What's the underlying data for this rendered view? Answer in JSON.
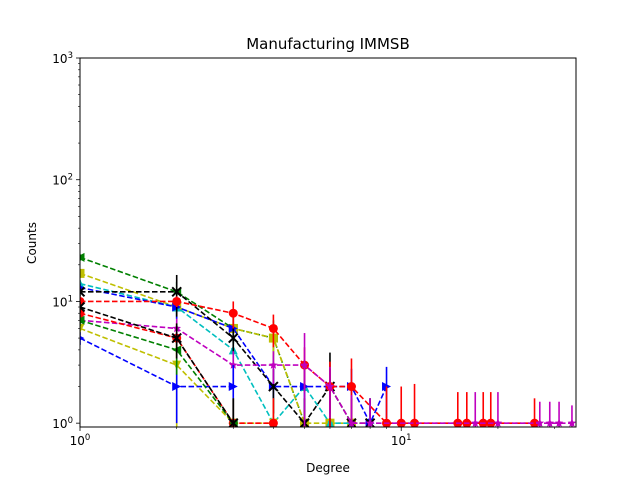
{
  "chart_data": {
    "type": "line",
    "title": "Manufacturing IMMSB",
    "xlabel": "Degree",
    "ylabel": "Counts",
    "xscale": "log",
    "yscale": "log",
    "xlim": [
      1,
      35
    ],
    "ylim": [
      0.93,
      1000
    ],
    "xticks": [
      {
        "value": 1,
        "base": "10",
        "exp": "0"
      },
      {
        "value": 10,
        "base": "10",
        "exp": "1"
      }
    ],
    "yticks": [
      {
        "value": 1,
        "base": "10",
        "exp": "0"
      },
      {
        "value": 10,
        "base": "10",
        "exp": "1"
      },
      {
        "value": 100,
        "base": "10",
        "exp": "2"
      },
      {
        "value": 1000,
        "base": "10",
        "exp": "3"
      }
    ],
    "grid": false,
    "legend": "none",
    "series": [
      {
        "color": "#008000",
        "marker": "triangle-left",
        "x": [
          1,
          2,
          3,
          4,
          5
        ],
        "y": [
          23,
          12,
          6,
          5,
          1
        ],
        "err": [
          1.4,
          2.5,
          1.5,
          2.0,
          0.6
        ]
      },
      {
        "color": "#bfbf00",
        "marker": "square",
        "x": [
          1,
          2,
          3,
          4,
          5,
          6,
          7
        ],
        "y": [
          17,
          9,
          6,
          5,
          1,
          1,
          1
        ],
        "err": [
          1.2,
          1.8,
          1.5,
          1.4,
          0.6,
          0.6,
          0.6
        ]
      },
      {
        "color": "#00bfbf",
        "marker": "triangle-up",
        "x": [
          1,
          2,
          3,
          4,
          5,
          6,
          7
        ],
        "y": [
          14,
          9,
          4,
          1,
          2,
          1,
          1
        ],
        "err": [
          1.0,
          1.8,
          1.2,
          0.6,
          0.8,
          0.6,
          0.6
        ]
      },
      {
        "color": "#0000ff",
        "marker": "triangle-right",
        "x": [
          1,
          2,
          3,
          4,
          5,
          6,
          7,
          8,
          9
        ],
        "y": [
          13,
          9,
          6,
          2,
          2,
          2,
          2,
          1,
          2
        ],
        "err": [
          1.0,
          1.8,
          1.4,
          0.8,
          0.8,
          0.8,
          0.8,
          0.6,
          0.9
        ]
      },
      {
        "color": "#000000",
        "marker": "x",
        "x": [
          1,
          2,
          3,
          4,
          5,
          6,
          7,
          8
        ],
        "y": [
          12,
          12,
          5,
          2,
          1,
          2,
          1,
          1
        ],
        "err": [
          1.0,
          4.5,
          1.3,
          0.8,
          0.6,
          1.8,
          0.6,
          0.6
        ]
      },
      {
        "color": "#ff0000",
        "marker": "circle",
        "x": [
          1,
          2,
          3,
          4,
          5,
          6,
          7,
          9,
          10,
          11,
          15,
          16,
          18,
          19,
          26
        ],
        "y": [
          10,
          10,
          8,
          6,
          3,
          2,
          2,
          1,
          1,
          1,
          1,
          1,
          1,
          1,
          1
        ],
        "err": [
          1.0,
          1.0,
          2.0,
          1.8,
          1.2,
          1.2,
          1.4,
          1.0,
          1.0,
          1.1,
          0.8,
          0.8,
          0.8,
          0.8,
          0.6
        ]
      },
      {
        "color": "#bf00bf",
        "marker": "star",
        "x": [
          1,
          2,
          3,
          4,
          5,
          6,
          7,
          8,
          17,
          20,
          27,
          29,
          31,
          34
        ],
        "y": [
          7,
          6,
          3,
          3,
          3,
          2,
          1,
          1,
          1,
          1,
          1,
          1,
          1,
          1
        ],
        "err": [
          0.8,
          1.2,
          0.9,
          0.9,
          2.5,
          0.9,
          0.7,
          0.6,
          0.8,
          0.8,
          0.5,
          0.5,
          0.5,
          0.4
        ]
      },
      {
        "color": "#bfbf00",
        "marker": "triangle-down",
        "x": [
          1,
          2,
          3,
          4
        ],
        "y": [
          6,
          3,
          1,
          1
        ],
        "err": [
          0.7,
          2.2,
          0.6,
          0.6
        ]
      },
      {
        "color": "#ff0000",
        "marker": "circle",
        "x": [
          1,
          2,
          3,
          4
        ],
        "y": [
          8,
          5,
          1,
          1
        ],
        "err": [
          0.8,
          1.6,
          0.6,
          0.6
        ]
      },
      {
        "color": "#0000ff",
        "marker": "triangle-right",
        "x": [
          1,
          2,
          3
        ],
        "y": [
          5,
          2,
          2
        ],
        "err": [
          0.6,
          1.0,
          1.0
        ]
      },
      {
        "color": "#008000",
        "marker": "triangle-left",
        "x": [
          1,
          2,
          3
        ],
        "y": [
          7,
          4,
          1
        ],
        "err": [
          0.7,
          1.5,
          0.6
        ]
      },
      {
        "color": "#000000",
        "marker": "x",
        "x": [
          1,
          2,
          3
        ],
        "y": [
          9,
          5,
          1
        ],
        "err": [
          0.9,
          1.6,
          0.6
        ]
      }
    ]
  }
}
